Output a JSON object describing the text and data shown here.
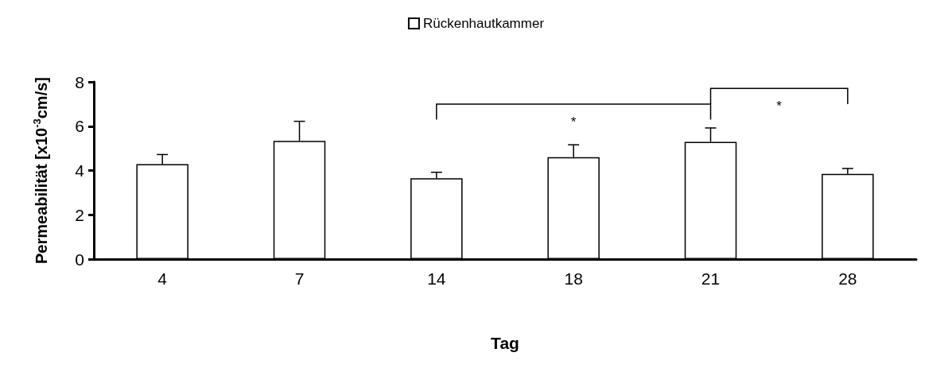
{
  "chart_data": {
    "type": "bar",
    "xlabel": "Tag",
    "ylabel": "Permeabilität [x10$^{-3}$cm/s]",
    "categories": [
      "4",
      "7",
      "14",
      "18",
      "21",
      "28"
    ],
    "series": [
      {
        "name": "Rückenhautkammer",
        "color": "#ffffff",
        "values": [
          4.29,
          5.34,
          3.65,
          4.6,
          5.29,
          3.85
        ],
        "errors": [
          0.43,
          0.88,
          0.27,
          0.56,
          0.63,
          0.24
        ]
      }
    ],
    "ylim": [
      0,
      8
    ],
    "yticks": [
      0,
      2,
      4,
      6,
      8
    ],
    "grid": false,
    "legend": "top",
    "annotations": [
      "*",
      "*"
    ]
  }
}
